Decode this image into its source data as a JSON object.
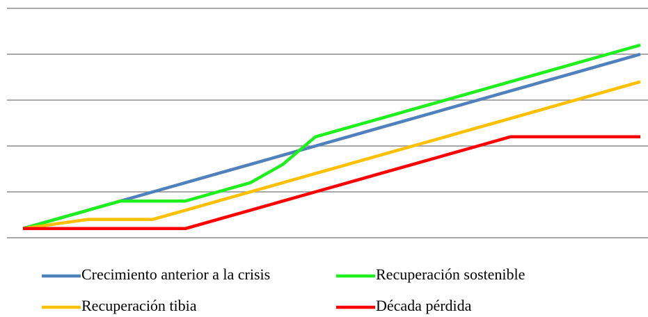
{
  "chart_data": {
    "type": "line",
    "categories": [
      null,
      null,
      null,
      null,
      null,
      null,
      null,
      null,
      null,
      null,
      null,
      null,
      null,
      null,
      null,
      null,
      null,
      null,
      null,
      null
    ],
    "series": [
      {
        "name": "Crecimiento anterior a la crisis",
        "color": "#4f81bd",
        "values": [
          0.2,
          0.4,
          0.6,
          0.8,
          1.0,
          1.2,
          1.4,
          1.6,
          1.8,
          2.0,
          2.2,
          2.4,
          2.6,
          2.8,
          3.0,
          3.2,
          3.4,
          3.6,
          3.8,
          4.0
        ]
      },
      {
        "name": "Recuperación sostenible",
        "color": "#1ef01e",
        "values": [
          0.2,
          0.4,
          0.6,
          0.8,
          0.8,
          0.8,
          1.0,
          1.2,
          1.6,
          2.2,
          2.4,
          2.6,
          2.8,
          3.0,
          3.2,
          3.4,
          3.6,
          3.8,
          4.0,
          4.2
        ]
      },
      {
        "name": "Recuperación tibia",
        "color": "#ffc000",
        "values": [
          0.2,
          0.3,
          0.4,
          0.4,
          0.4,
          0.6,
          0.8,
          1.0,
          1.2,
          1.4,
          1.6,
          1.8,
          2.0,
          2.2,
          2.4,
          2.6,
          2.8,
          3.0,
          3.2,
          3.4
        ]
      },
      {
        "name": "Década pérdida",
        "color": "#ff0000",
        "values": [
          0.2,
          0.2,
          0.2,
          0.2,
          0.2,
          0.2,
          0.4,
          0.6,
          0.8,
          1.0,
          1.2,
          1.4,
          1.6,
          1.8,
          2.0,
          2.2,
          2.2,
          2.2,
          2.2,
          2.2
        ]
      }
    ],
    "ylim": [
      0,
      5
    ],
    "yticks": [
      0,
      1,
      2,
      3,
      4,
      5
    ],
    "grid": true,
    "legend": "bottom"
  }
}
